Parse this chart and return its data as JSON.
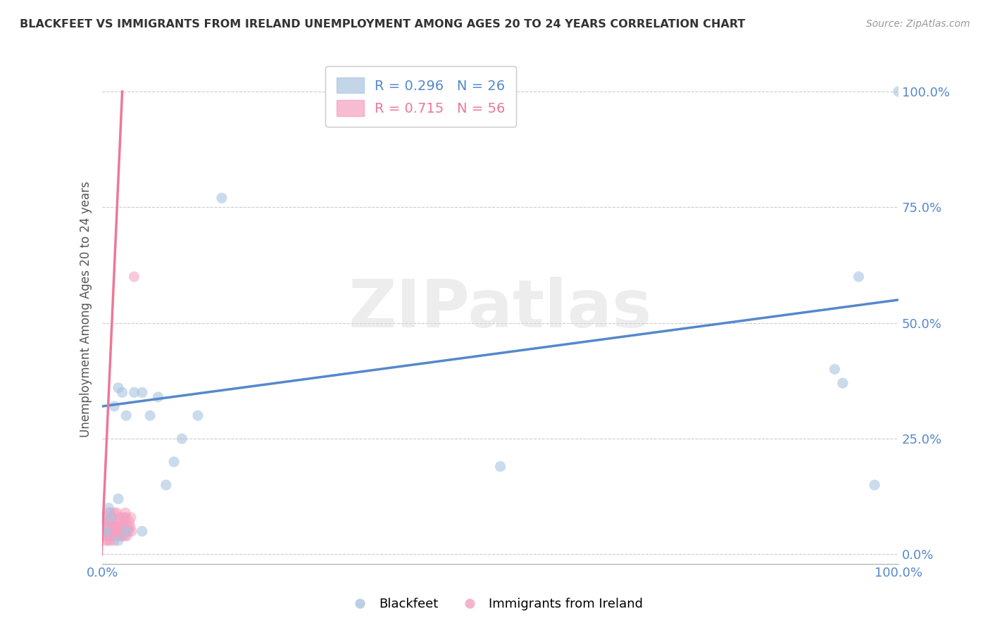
{
  "title": "BLACKFEET VS IMMIGRANTS FROM IRELAND UNEMPLOYMENT AMONG AGES 20 TO 24 YEARS CORRELATION CHART",
  "source": "Source: ZipAtlas.com",
  "ylabel": "Unemployment Among Ages 20 to 24 years",
  "xlim": [
    0,
    1.0
  ],
  "ylim": [
    -0.02,
    1.08
  ],
  "xtick_positions": [
    0.0,
    1.0
  ],
  "xticklabels": [
    "0.0%",
    "100.0%"
  ],
  "ytick_positions": [
    0.0,
    0.25,
    0.5,
    0.75,
    1.0
  ],
  "yticklabels": [
    "0.0%",
    "25.0%",
    "50.0%",
    "75.0%",
    "100.0%"
  ],
  "blue_label": "Blackfeet",
  "pink_label": "Immigrants from Ireland",
  "blue_R": 0.296,
  "blue_N": 26,
  "pink_R": 0.715,
  "pink_N": 56,
  "blue_color": "#A8C4E0",
  "pink_color": "#F4A0C0",
  "blue_line_color": "#5588CC",
  "pink_line_color": "#EE7799",
  "watermark_text": "ZIPatlas",
  "background_color": "#FFFFFF",
  "grid_color": "#CCCCCC",
  "blue_scatter_x": [
    0.005,
    0.008,
    0.01,
    0.015,
    0.02,
    0.02,
    0.025,
    0.03,
    0.04,
    0.05,
    0.06,
    0.07,
    0.08,
    0.09,
    0.1,
    0.12,
    0.15,
    0.02,
    0.03,
    0.05,
    0.5,
    0.92,
    0.93,
    0.95,
    0.97,
    1.0
  ],
  "blue_scatter_y": [
    0.05,
    0.1,
    0.08,
    0.32,
    0.36,
    0.12,
    0.35,
    0.3,
    0.35,
    0.35,
    0.3,
    0.34,
    0.15,
    0.2,
    0.25,
    0.3,
    0.77,
    0.03,
    0.05,
    0.05,
    0.19,
    0.4,
    0.37,
    0.6,
    0.15,
    1.0
  ],
  "pink_scatter_x": [
    0.002,
    0.003,
    0.004,
    0.004,
    0.005,
    0.005,
    0.006,
    0.006,
    0.007,
    0.007,
    0.008,
    0.008,
    0.009,
    0.009,
    0.01,
    0.01,
    0.01,
    0.011,
    0.011,
    0.012,
    0.012,
    0.013,
    0.013,
    0.014,
    0.015,
    0.015,
    0.015,
    0.016,
    0.017,
    0.018,
    0.018,
    0.019,
    0.02,
    0.02,
    0.021,
    0.022,
    0.022,
    0.023,
    0.024,
    0.025,
    0.025,
    0.026,
    0.027,
    0.028,
    0.028,
    0.029,
    0.03,
    0.03,
    0.031,
    0.032,
    0.033,
    0.034,
    0.035,
    0.036,
    0.037,
    0.04
  ],
  "pink_scatter_y": [
    0.04,
    0.06,
    0.03,
    0.07,
    0.05,
    0.08,
    0.04,
    0.06,
    0.03,
    0.07,
    0.05,
    0.09,
    0.04,
    0.07,
    0.03,
    0.06,
    0.09,
    0.05,
    0.08,
    0.04,
    0.07,
    0.05,
    0.08,
    0.04,
    0.03,
    0.06,
    0.09,
    0.05,
    0.04,
    0.06,
    0.09,
    0.05,
    0.04,
    0.07,
    0.05,
    0.04,
    0.08,
    0.06,
    0.05,
    0.04,
    0.07,
    0.05,
    0.08,
    0.04,
    0.06,
    0.09,
    0.05,
    0.08,
    0.04,
    0.06,
    0.05,
    0.07,
    0.06,
    0.08,
    0.05,
    0.6
  ],
  "blue_trend_x": [
    0.0,
    1.0
  ],
  "blue_trend_y": [
    0.32,
    0.55
  ],
  "pink_trend_x": [
    -0.001,
    0.025
  ],
  "pink_trend_y": [
    0.0,
    1.0
  ]
}
